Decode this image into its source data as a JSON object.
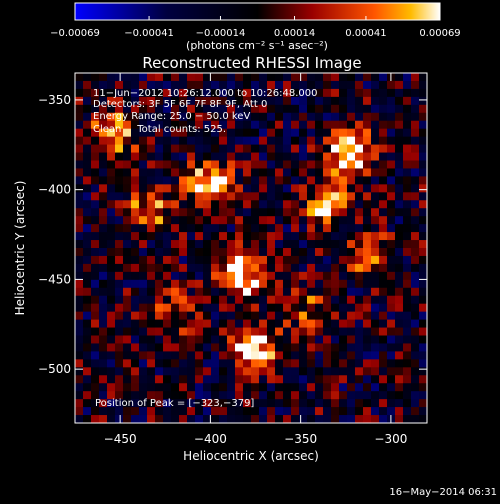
{
  "chart_data": {
    "type": "heatmap",
    "title": "Reconstructed RHESSI Image",
    "xlabel": "Heliocentric X (arcsec)",
    "ylabel": "Heliocentric Y (arcsec)",
    "xlim": [
      -475,
      -280
    ],
    "ylim": [
      -530,
      -335
    ],
    "x_ticks": [
      -450,
      -400,
      -350,
      -300
    ],
    "x_tick_labels": [
      "−450",
      "−400",
      "−350",
      "−300"
    ],
    "y_ticks": [
      -350,
      -400,
      -450,
      -500
    ],
    "y_tick_labels": [
      "−350",
      "−400",
      "−450",
      "−500"
    ],
    "colorbar": {
      "range": [
        -0.00069,
        0.00069
      ],
      "ticks": [
        -0.00069,
        -0.00041,
        -0.00014,
        0.00014,
        0.00041,
        0.00069
      ],
      "tick_labels": [
        "−0.00069",
        "−0.00041",
        "−0.00014",
        "0.00014",
        "0.00041",
        "0.00069"
      ],
      "unit_label": "(photons cm⁻² s⁻¹ asec⁻²)"
    },
    "annotations": [
      "11−Jun−2012 10:26:12.000 to 10:26:48.000",
      "Detectors: 3F 5F 6F 7F 8F 9F, Att 0",
      "Energy Range: 25.0 − 50.0 keV",
      "Clean     Total counts: 525."
    ],
    "peak_label": "Position of Peak = [−323,−379]",
    "peak": [
      -323,
      -379
    ],
    "sources": [
      {
        "x": -400,
        "y": -397,
        "amp": 0.00065
      },
      {
        "x": -383,
        "y": -448,
        "amp": 0.00069
      },
      {
        "x": -323,
        "y": -379,
        "amp": 0.00069
      },
      {
        "x": -375,
        "y": -490,
        "amp": 0.00066
      },
      {
        "x": -453,
        "y": -369,
        "amp": 0.00045
      },
      {
        "x": -433,
        "y": -410,
        "amp": 0.0004
      },
      {
        "x": -335,
        "y": -408,
        "amp": 0.00052
      },
      {
        "x": -312,
        "y": -437,
        "amp": 0.00038
      },
      {
        "x": -420,
        "y": -468,
        "amp": 0.00028
      },
      {
        "x": -350,
        "y": -465,
        "amp": 0.0003
      }
    ]
  },
  "footer": {
    "date": "16−May−2014 06:31"
  }
}
